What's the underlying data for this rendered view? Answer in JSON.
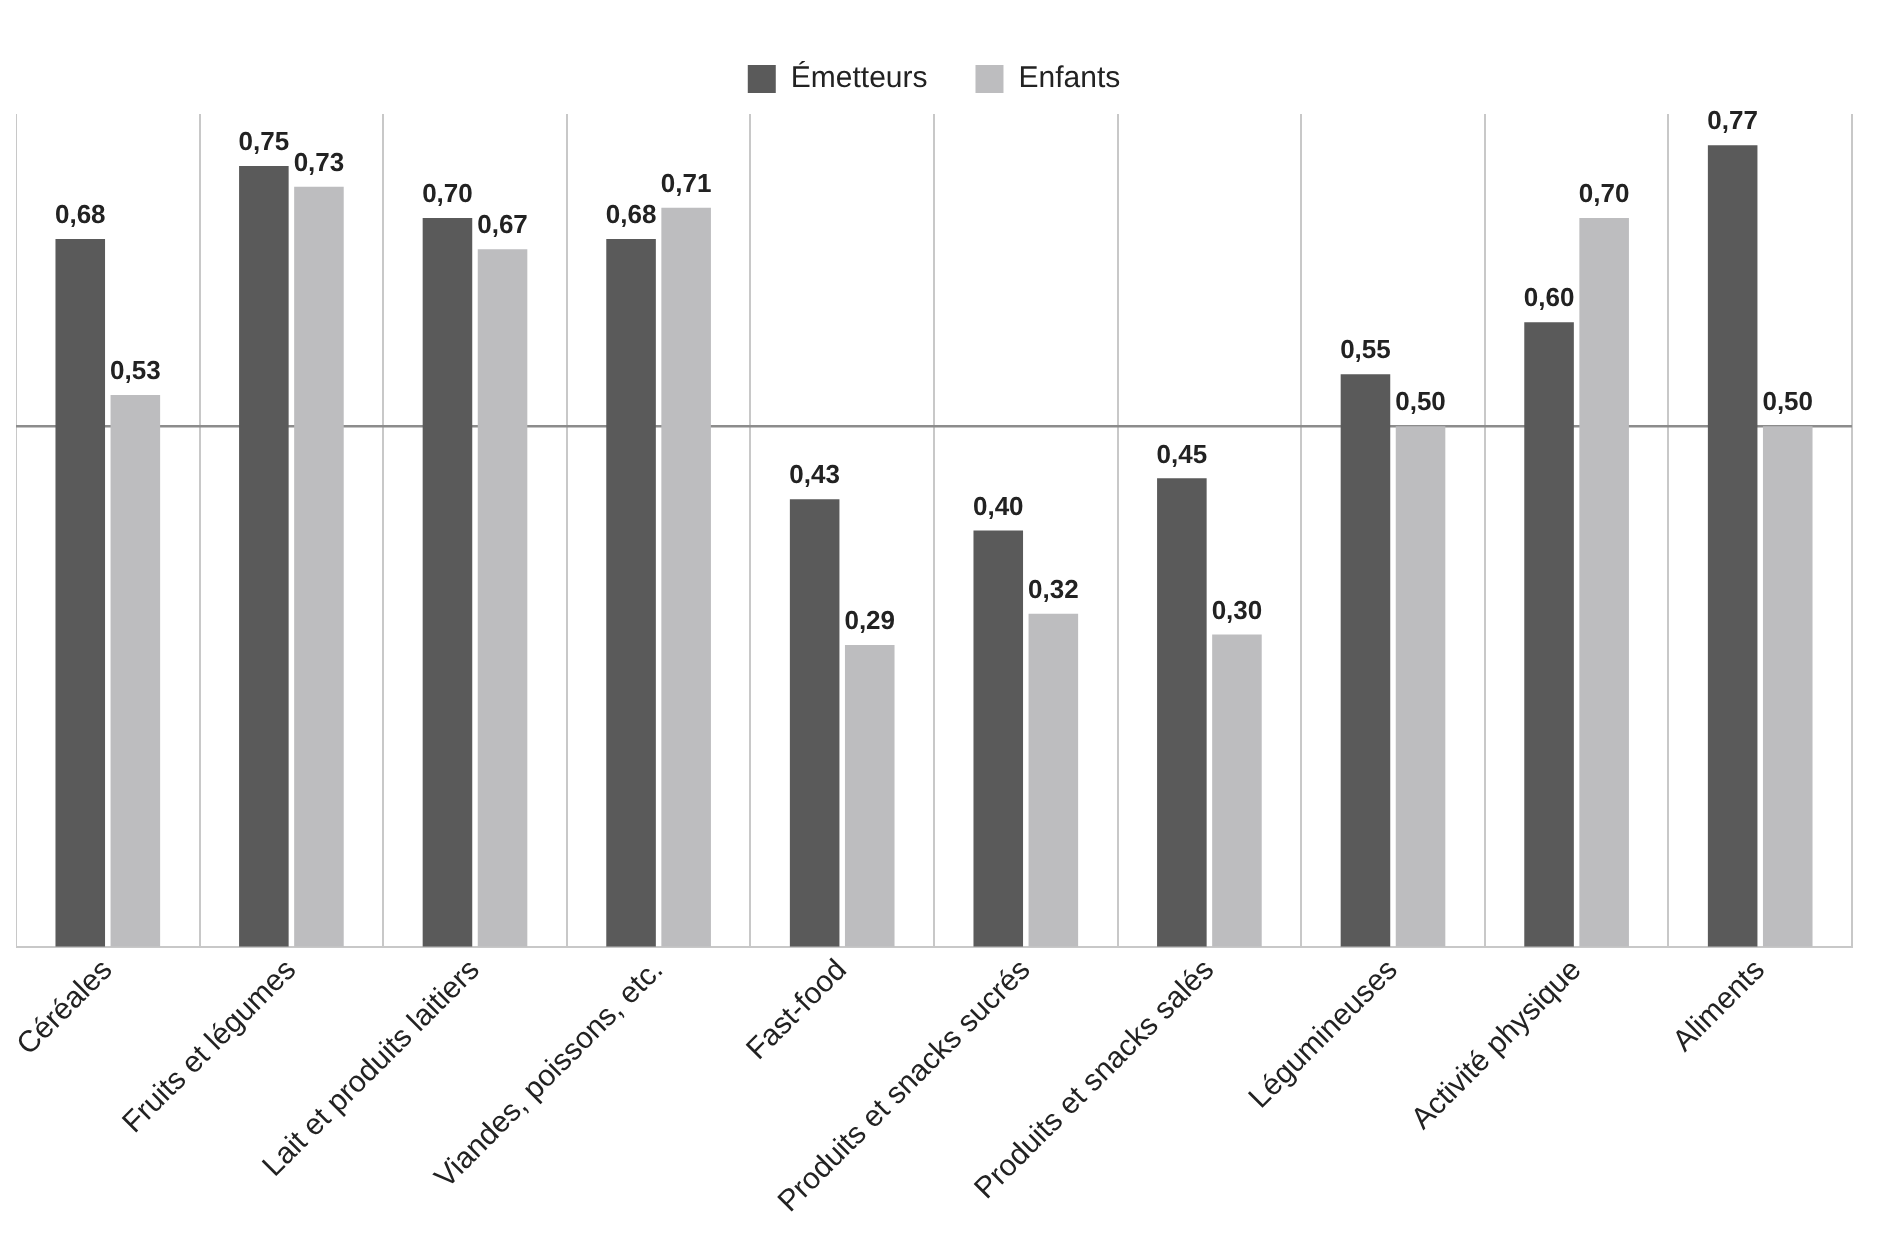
{
  "chart_data": {
    "type": "bar",
    "categories": [
      "Céréales",
      "Fruits et légumes",
      "Lait et produits laitiers",
      "Viandes, poissons, etc.",
      "Fast-food",
      "Produits et snacks sucrés",
      "Produits et snacks salés",
      "Légumineuses",
      "Activité physique",
      "Aliments"
    ],
    "series": [
      {
        "name": "Émetteurs",
        "color": "#5a5a5a",
        "values": [
          0.68,
          0.75,
          0.7,
          0.68,
          0.43,
          0.4,
          0.45,
          0.55,
          0.6,
          0.77
        ],
        "value_labels": [
          "0,68",
          "0,75",
          "0,70",
          "0,68",
          "0,43",
          "0,40",
          "0,45",
          "0,55",
          "0,60",
          "0,77"
        ]
      },
      {
        "name": "Enfants",
        "color": "#bdbdbf",
        "values": [
          0.53,
          0.73,
          0.67,
          0.71,
          0.29,
          0.32,
          0.3,
          0.5,
          0.7,
          0.5
        ],
        "value_labels": [
          "0,53",
          "0,73",
          "0,67",
          "0,71",
          "0,29",
          "0,32",
          "0,30",
          "0,50",
          "0,70",
          "0,50"
        ]
      }
    ],
    "legend": "top",
    "grid": "x",
    "tick_labels": "x",
    "ref_lines": [
      {
        "axis": "y",
        "value": 0.5,
        "color": "#8c8c8c"
      }
    ]
  }
}
